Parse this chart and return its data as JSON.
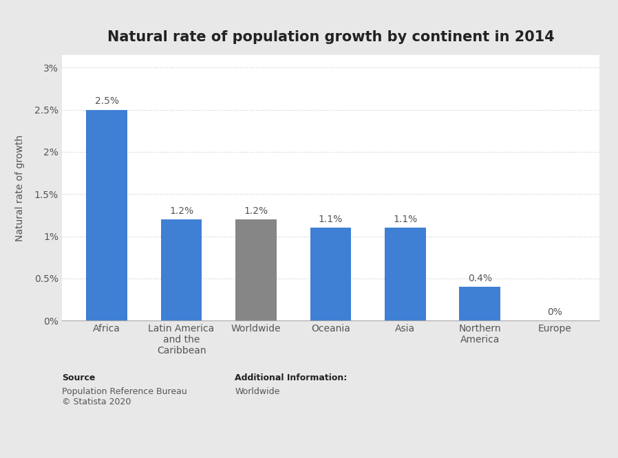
{
  "title": "Natural rate of population growth by continent in 2014",
  "categories": [
    "Africa",
    "Latin America\nand the\nCaribbean",
    "Worldwide",
    "Oceania",
    "Asia",
    "Northern\nAmerica",
    "Europe"
  ],
  "values": [
    2.5,
    1.2,
    1.2,
    1.1,
    1.1,
    0.4,
    0.0
  ],
  "labels": [
    "2.5%",
    "1.2%",
    "1.2%",
    "1.1%",
    "1.1%",
    "0.4%",
    "0%"
  ],
  "bar_colors": [
    "#3f7fd4",
    "#3f7fd4",
    "#868686",
    "#3f7fd4",
    "#3f7fd4",
    "#3f7fd4",
    "#3f7fd4"
  ],
  "ylabel": "Natural rate of growth",
  "yticks": [
    0.0,
    0.5,
    1.0,
    1.5,
    2.0,
    2.5,
    3.0
  ],
  "ytick_labels": [
    "0%",
    "0.5%",
    "1%",
    "1.5%",
    "2%",
    "2.5%",
    "3%"
  ],
  "ylim": [
    0,
    3.15
  ],
  "outer_background": "#e8e8e8",
  "plot_background": "#ffffff",
  "grid_color": "#cccccc",
  "text_color": "#555555",
  "source_bold": "Source",
  "source_normal": "Population Reference Bureau\n© Statista 2020",
  "addl_bold": "Additional Information:",
  "addl_normal": "Worldwide",
  "title_fontsize": 15,
  "label_fontsize": 10,
  "tick_fontsize": 10,
  "ylabel_fontsize": 10,
  "source_fontsize": 9
}
